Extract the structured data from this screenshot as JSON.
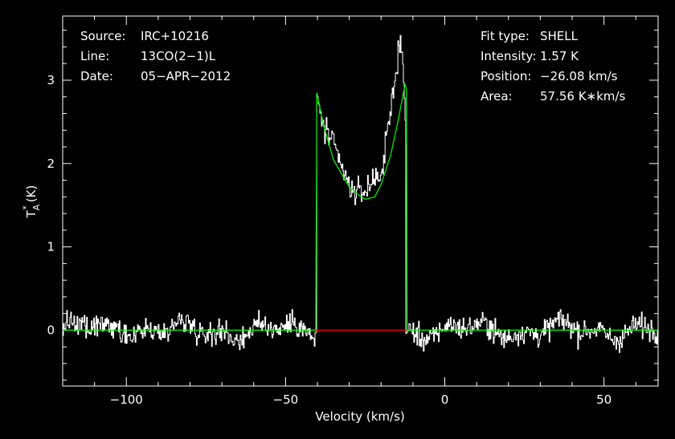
{
  "chart_data": {
    "type": "line",
    "xlabel": "Velocity (km/s)",
    "ylabel": "T*A (K)",
    "ylabel_main": "T",
    "ylabel_sup": "*",
    "ylabel_sub": "A",
    "ylabel_unit": "(K)",
    "xlim": [
      -120,
      67
    ],
    "ylim": [
      -0.67,
      3.77
    ],
    "xticks": [
      -100,
      -50,
      0,
      50
    ],
    "xtick_labels": [
      "−100",
      "−50",
      "0",
      "50"
    ],
    "yticks": [
      0,
      1,
      2,
      3
    ],
    "ytick_labels": [
      "0",
      "1",
      "2",
      "3"
    ],
    "info_left": [
      {
        "key": "Source:",
        "value": "IRC+10216"
      },
      {
        "key": "Line:",
        "value": "13CO(2−1)L"
      },
      {
        "key": "Date:",
        "value": "05−APR−2012"
      }
    ],
    "info_right": [
      {
        "key": "Fit type:",
        "value": "SHELL"
      },
      {
        "key": "Intensity:",
        "value": "1.57 K"
      },
      {
        "key": "Position:",
        "value": "−26.08 km/s"
      },
      {
        "key": "Area:",
        "value": "57.56 K∗km/s"
      }
    ],
    "fit": {
      "type": "shell",
      "intensity_K": 1.57,
      "position_kms": -26.08,
      "area_Kkms": 57.56,
      "x": [
        -120,
        -40.5,
        -40.2,
        -38,
        -35,
        -32,
        -30,
        -27,
        -25,
        -22,
        -20,
        -17,
        -15,
        -12.5,
        -12.1,
        -11.8,
        67
      ],
      "y": [
        0,
        0,
        2.85,
        2.45,
        2.05,
        1.85,
        1.72,
        1.62,
        1.57,
        1.6,
        1.75,
        2.1,
        2.45,
        2.95,
        2.9,
        0,
        0
      ]
    },
    "baseline": {
      "x": [
        -40.5,
        -12
      ],
      "y": [
        0,
        0
      ]
    },
    "spectrum": {
      "x_start": -120,
      "x_end": 67,
      "step_kms": 0.25,
      "noise_rms_K": 0.09,
      "features": [
        {
          "x": -40.3,
          "y": 2.9
        },
        {
          "x": -38,
          "y": 2.5
        },
        {
          "x": -30,
          "y": 1.75
        },
        {
          "x": -25,
          "y": 1.57
        },
        {
          "x": -20,
          "y": 1.82
        },
        {
          "x": -14,
          "y": 3.55
        },
        {
          "x": -12.5,
          "y": 2.6
        }
      ]
    },
    "colors": {
      "background": "#000000",
      "axes": "#ffffff",
      "spectrum": "#ffffff",
      "fit": "#00ff00",
      "baseline": "#ff0000"
    },
    "grid": false,
    "legend": "none"
  }
}
